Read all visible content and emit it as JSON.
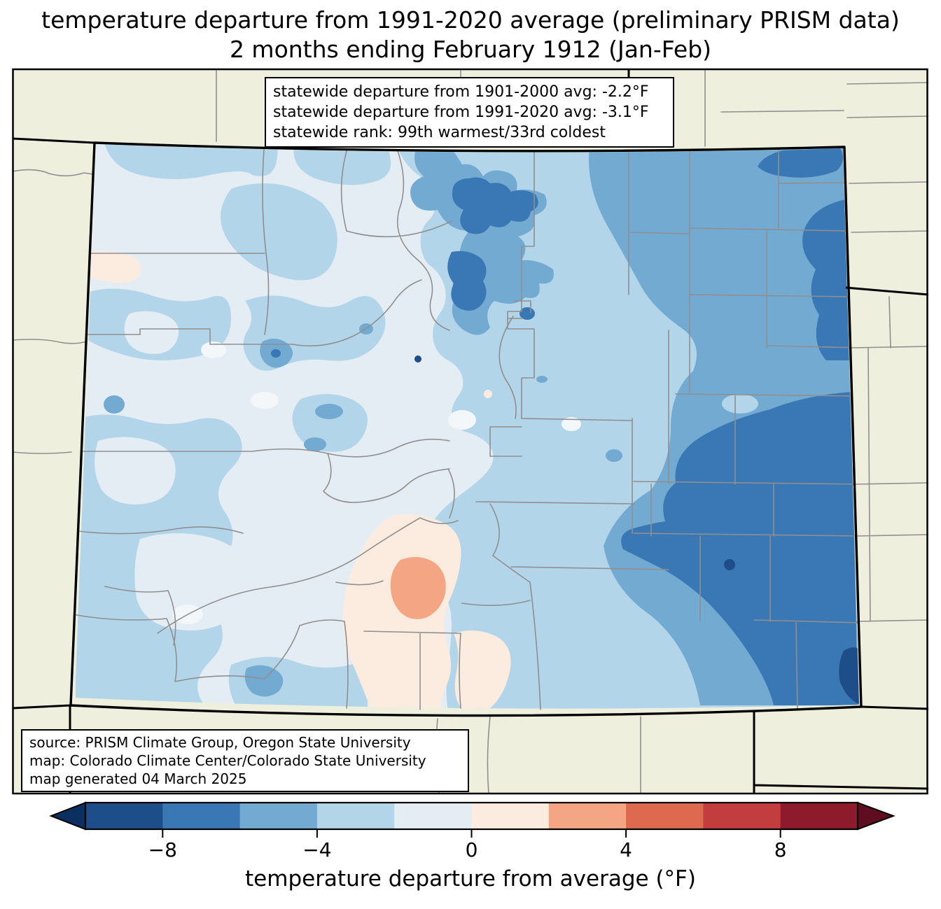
{
  "title": {
    "line1": "temperature departure from 1991-2020 average (preliminary PRISM data)",
    "line2": "2 months ending February 1912 (Jan-Feb)"
  },
  "stats_box": {
    "lines": [
      "statewide departure from 1901-2000 avg: -2.2°F",
      "statewide departure from 1991-2020 avg: -3.1°F",
      "statewide rank: 99th warmest/33rd coldest"
    ]
  },
  "source_box": {
    "lines": [
      "source: PRISM Climate Group, Oregon State University",
      "map: Colorado Climate Center/Colorado State University",
      "map generated 04 March 2025"
    ]
  },
  "colorbar": {
    "label": "temperature departure from average (°F)",
    "ticks": [
      "−8",
      "−4",
      "0",
      "4",
      "8"
    ],
    "tick_values": [
      -8,
      -4,
      0,
      4,
      8
    ],
    "range": [
      -10,
      10
    ],
    "segment_keys": [
      "band_m10_m8",
      "band_m8_m6",
      "band_m6_m4",
      "band_m4_m2",
      "band_m2_0",
      "band_0_2",
      "band_2_4",
      "band_4_6",
      "band_6_8",
      "band_8_10"
    ],
    "under_key": "band_under",
    "over_key": "band_over"
  },
  "palette": {
    "page_bg": "#ffffff",
    "map_bg": "#eef0dd",
    "county_line": "#8f8f8f",
    "state_line": "#000000",
    "near_white": "#f3f7f9",
    "band_under": "#0b3060",
    "band_m10_m8": "#1d4e89",
    "band_m8_m6": "#3a77b5",
    "band_m6_m4": "#73aad1",
    "band_m4_m2": "#b3d5e9",
    "band_m2_0": "#e5edf4",
    "band_0_2": "#fcecdf",
    "band_2_4": "#f4a583",
    "band_4_6": "#dd6a4f",
    "band_6_8": "#c23d3e",
    "band_8_10": "#8e1b2c",
    "band_over": "#5f0d20"
  },
  "chart_data": {
    "type": "choropleth_map",
    "region": "Colorado (with neighboring state edges)",
    "variable": "temperature departure from average (°F)",
    "period": "2 months ending February 1912 (Jan-Feb)",
    "baseline": "1991-2020 average (preliminary PRISM data)",
    "legend_bins_f": [
      -10,
      -8,
      -6,
      -4,
      -2,
      0,
      2,
      4,
      6,
      8,
      10
    ],
    "statewide_departure_1901_2000_f": -2.2,
    "statewide_departure_1991_2020_f": -3.1,
    "statewide_rank": "99th warmest/33rd coldest",
    "pattern": "mostly -2 to -6°F (blue) statewide; coldest (-8 to -10°F) in far east/southeast and northeast corner; small areas 0 to +4°F (peach/salmon) in the south-central San Luis Valley area and a small patch on the west edge"
  }
}
